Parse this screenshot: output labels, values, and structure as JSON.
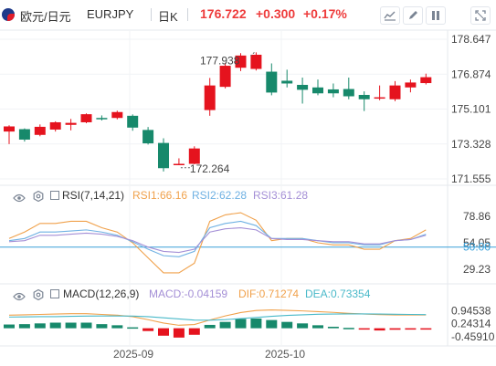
{
  "header": {
    "symbol_cn": "欧元/日元",
    "symbol": "EURJPY",
    "timeframe": "日K",
    "last_price": "176.722",
    "change": "+0.300",
    "change_pct": "+0.17%"
  },
  "toolbar_icons": [
    "line-chart-icon",
    "pen-icon",
    "pause-icon",
    "expand-icon"
  ],
  "colors": {
    "up": "#e5131e",
    "down": "#17896b",
    "up_text": "#ee3c3c",
    "rsi1": "#f0a14b",
    "rsi2": "#6fb1e3",
    "rsi3": "#a48fd6",
    "dif": "#f0a14b",
    "dea": "#49b9c9"
  },
  "chart_data": [
    {
      "type": "candlestick",
      "price_labels": [
        "178.647",
        "176.874",
        "175.101",
        "173.328",
        "171.555"
      ],
      "annotations": {
        "high": "177.938",
        "low": "172.264"
      },
      "x_labels": [
        "2025-09",
        "2025-10"
      ],
      "candles": [
        {
          "o": 173.96,
          "h": 174.28,
          "l": 173.32,
          "c": 174.22
        },
        {
          "o": 174.08,
          "h": 174.12,
          "l": 173.45,
          "c": 173.55
        },
        {
          "o": 173.79,
          "h": 174.32,
          "l": 173.72,
          "c": 174.2
        },
        {
          "o": 174.06,
          "h": 174.48,
          "l": 173.96,
          "c": 174.43
        },
        {
          "o": 174.3,
          "h": 174.6,
          "l": 174.02,
          "c": 174.4
        },
        {
          "o": 174.43,
          "h": 174.88,
          "l": 174.38,
          "c": 174.84
        },
        {
          "o": 174.65,
          "h": 174.78,
          "l": 174.52,
          "c": 174.62
        },
        {
          "o": 174.65,
          "h": 175.02,
          "l": 174.58,
          "c": 174.95
        },
        {
          "o": 174.76,
          "h": 174.83,
          "l": 174.0,
          "c": 174.16
        },
        {
          "o": 174.04,
          "h": 174.19,
          "l": 173.3,
          "c": 173.36
        },
        {
          "o": 173.38,
          "h": 173.62,
          "l": 171.93,
          "c": 172.1
        },
        {
          "o": 172.3,
          "h": 172.6,
          "l": 172.26,
          "c": 172.32
        },
        {
          "o": 172.32,
          "h": 173.21,
          "l": 172.3,
          "c": 173.1
        },
        {
          "o": 175.05,
          "h": 176.68,
          "l": 174.76,
          "c": 176.3
        },
        {
          "o": 176.23,
          "h": 177.45,
          "l": 176.15,
          "c": 177.3
        },
        {
          "o": 177.2,
          "h": 177.94,
          "l": 177.03,
          "c": 177.82
        },
        {
          "o": 177.14,
          "h": 177.98,
          "l": 177.06,
          "c": 177.86
        },
        {
          "o": 177.0,
          "h": 177.42,
          "l": 175.8,
          "c": 175.94
        },
        {
          "o": 176.54,
          "h": 177.1,
          "l": 176.2,
          "c": 176.4
        },
        {
          "o": 176.33,
          "h": 176.7,
          "l": 175.38,
          "c": 176.08
        },
        {
          "o": 176.2,
          "h": 176.6,
          "l": 175.8,
          "c": 175.9
        },
        {
          "o": 176.1,
          "h": 176.4,
          "l": 175.7,
          "c": 175.9
        },
        {
          "o": 176.12,
          "h": 176.7,
          "l": 175.6,
          "c": 175.75
        },
        {
          "o": 175.82,
          "h": 176.0,
          "l": 175.0,
          "c": 175.6
        },
        {
          "o": 175.7,
          "h": 176.3,
          "l": 175.55,
          "c": 175.7
        },
        {
          "o": 175.6,
          "h": 176.52,
          "l": 175.5,
          "c": 176.3
        },
        {
          "o": 176.2,
          "h": 176.6,
          "l": 175.95,
          "c": 176.45
        },
        {
          "o": 176.42,
          "h": 176.9,
          "l": 176.35,
          "c": 176.72
        }
      ]
    },
    {
      "type": "line",
      "name": "RSI(7,14,21)",
      "legend": [
        "RSI1:66.16",
        "RSI2:62.28",
        "RSI3:61.28"
      ],
      "y_labels": [
        "78.86",
        "54.05",
        "29.23"
      ],
      "reference": {
        "value": 50.0,
        "label": "50.00"
      },
      "ylim": [
        20,
        88
      ],
      "series": [
        {
          "values": [
            58,
            64,
            72,
            72,
            74,
            74,
            68,
            64,
            54,
            40,
            26,
            26,
            35,
            74,
            80,
            82,
            75,
            56,
            58,
            58,
            54,
            52,
            52,
            48,
            48,
            56,
            58,
            66
          ]
        },
        {
          "values": [
            56,
            58,
            64,
            64,
            65,
            66,
            64,
            61,
            55,
            48,
            42,
            41,
            46,
            68,
            72,
            74,
            70,
            58,
            58,
            58,
            56,
            54,
            54,
            52,
            52,
            56,
            57,
            62
          ]
        },
        {
          "values": [
            55,
            56,
            61,
            61,
            62,
            63,
            62,
            60,
            56,
            50,
            46,
            45,
            48,
            64,
            67,
            68,
            66,
            58,
            57,
            57,
            56,
            55,
            55,
            53,
            53,
            56,
            57,
            61
          ]
        }
      ]
    },
    {
      "type": "bar",
      "name": "MACD(12,26,9)",
      "legend": [
        "MACD:-0.04159",
        "DIF:0.71274",
        "DEA:0.73354"
      ],
      "y_labels": [
        "0.94538",
        "0.24314",
        "-0.45910"
      ],
      "ylim": [
        -0.85,
        1.45
      ],
      "values": [
        0.2,
        0.22,
        0.26,
        0.3,
        0.3,
        0.3,
        0.22,
        0.16,
        0.05,
        -0.15,
        -0.4,
        -0.5,
        -0.35,
        0.18,
        0.34,
        0.5,
        0.52,
        0.44,
        0.34,
        0.26,
        0.16,
        0.08,
        0.02,
        -0.06,
        -0.12,
        -0.08,
        -0.07,
        -0.04
      ],
      "series": [
        {
          "values": [
            0.7,
            0.72,
            0.74,
            0.76,
            0.78,
            0.78,
            0.74,
            0.7,
            0.62,
            0.46,
            0.28,
            0.16,
            0.2,
            0.44,
            0.66,
            0.84,
            0.95,
            0.98,
            0.96,
            0.93,
            0.89,
            0.85,
            0.8,
            0.76,
            0.73,
            0.71,
            0.71,
            0.71
          ]
        },
        {
          "values": [
            0.6,
            0.61,
            0.62,
            0.62,
            0.64,
            0.65,
            0.66,
            0.66,
            0.65,
            0.62,
            0.56,
            0.5,
            0.44,
            0.43,
            0.46,
            0.52,
            0.58,
            0.64,
            0.69,
            0.72,
            0.75,
            0.76,
            0.77,
            0.77,
            0.76,
            0.75,
            0.74,
            0.73
          ]
        }
      ]
    }
  ]
}
